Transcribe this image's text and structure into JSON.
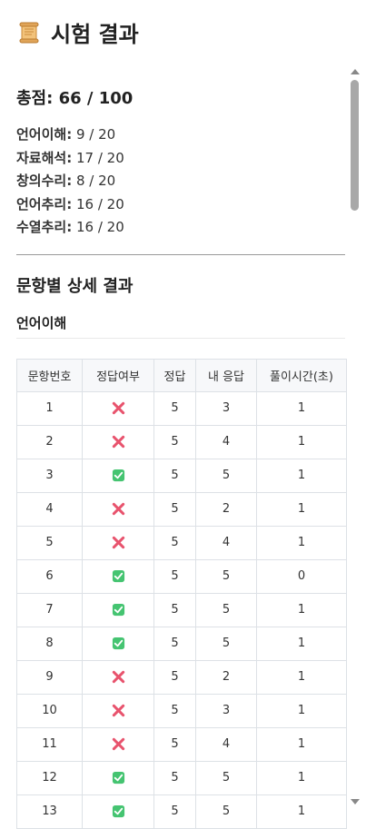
{
  "header": {
    "title": "시험 결과",
    "icon": "scroll-icon"
  },
  "summary": {
    "total": "총점: 66 / 100",
    "sections": [
      {
        "name": "언어이해:",
        "score": " 9 / 20"
      },
      {
        "name": "자료해석:",
        "score": " 17 / 20"
      },
      {
        "name": "창의수리:",
        "score": " 8 / 20"
      },
      {
        "name": "언어추리:",
        "score": " 16 / 20"
      },
      {
        "name": "수열추리:",
        "score": " 16 / 20"
      }
    ]
  },
  "detail": {
    "title": "문항별 상세 결과",
    "subject": "언어이해",
    "columns": [
      "문항번호",
      "정답여부",
      "정답",
      "내 응답",
      "풀이시간(초)"
    ],
    "rows": [
      {
        "no": "1",
        "correct": false,
        "answer": "5",
        "mine": "3",
        "time": "1"
      },
      {
        "no": "2",
        "correct": false,
        "answer": "5",
        "mine": "4",
        "time": "1"
      },
      {
        "no": "3",
        "correct": true,
        "answer": "5",
        "mine": "5",
        "time": "1"
      },
      {
        "no": "4",
        "correct": false,
        "answer": "5",
        "mine": "2",
        "time": "1"
      },
      {
        "no": "5",
        "correct": false,
        "answer": "5",
        "mine": "4",
        "time": "1"
      },
      {
        "no": "6",
        "correct": true,
        "answer": "5",
        "mine": "5",
        "time": "0"
      },
      {
        "no": "7",
        "correct": true,
        "answer": "5",
        "mine": "5",
        "time": "1"
      },
      {
        "no": "8",
        "correct": true,
        "answer": "5",
        "mine": "5",
        "time": "1"
      },
      {
        "no": "9",
        "correct": false,
        "answer": "5",
        "mine": "2",
        "time": "1"
      },
      {
        "no": "10",
        "correct": false,
        "answer": "5",
        "mine": "3",
        "time": "1"
      },
      {
        "no": "11",
        "correct": false,
        "answer": "5",
        "mine": "4",
        "time": "1"
      },
      {
        "no": "12",
        "correct": true,
        "answer": "5",
        "mine": "5",
        "time": "1"
      },
      {
        "no": "13",
        "correct": true,
        "answer": "5",
        "mine": "5",
        "time": "1"
      }
    ]
  },
  "colors": {
    "wrong": "#e8536d",
    "right": "#45c471"
  }
}
